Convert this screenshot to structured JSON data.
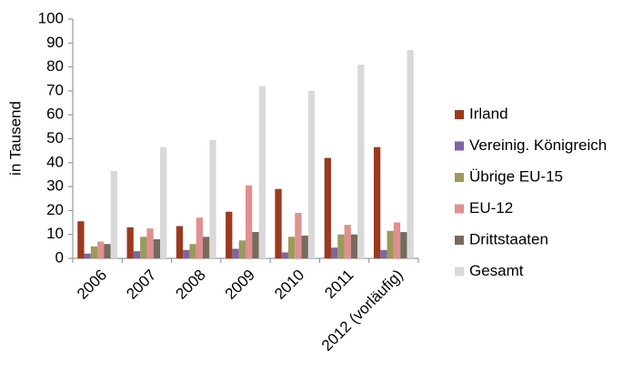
{
  "chart_data": {
    "type": "bar",
    "y_label": "in Tausend",
    "categories": [
      "2006",
      "2007",
      "2008",
      "2009",
      "2010",
      "2011",
      "2012 (vorläufig)"
    ],
    "series": [
      {
        "name": "Irland",
        "color": "#9b3a1e",
        "values": [
          15.5,
          13,
          13.5,
          19.5,
          29,
          42,
          46.5
        ]
      },
      {
        "name": "Vereinig. Königreich",
        "color": "#8064a2",
        "values": [
          2,
          3,
          3.5,
          4,
          2.5,
          4.5,
          3.5
        ]
      },
      {
        "name": "Übrige EU-15",
        "color": "#9b9a5a",
        "values": [
          5,
          9,
          6,
          7.5,
          9,
          10,
          11.5
        ]
      },
      {
        "name": "EU-12",
        "color": "#e0908f",
        "values": [
          7,
          12.5,
          17,
          30.5,
          19,
          14,
          15
        ]
      },
      {
        "name": "Drittstaaten",
        "color": "#776a5e",
        "values": [
          6,
          8,
          9,
          11,
          9.5,
          10,
          11
        ]
      },
      {
        "name": "Gesamt",
        "color": "#d9d9d9",
        "values": [
          36.5,
          46.5,
          49.5,
          72,
          70,
          81,
          87
        ]
      }
    ],
    "ylim": [
      0,
      100
    ],
    "yticks": [
      0,
      10,
      20,
      30,
      40,
      50,
      60,
      70,
      80,
      90,
      100
    ],
    "grid": false
  }
}
